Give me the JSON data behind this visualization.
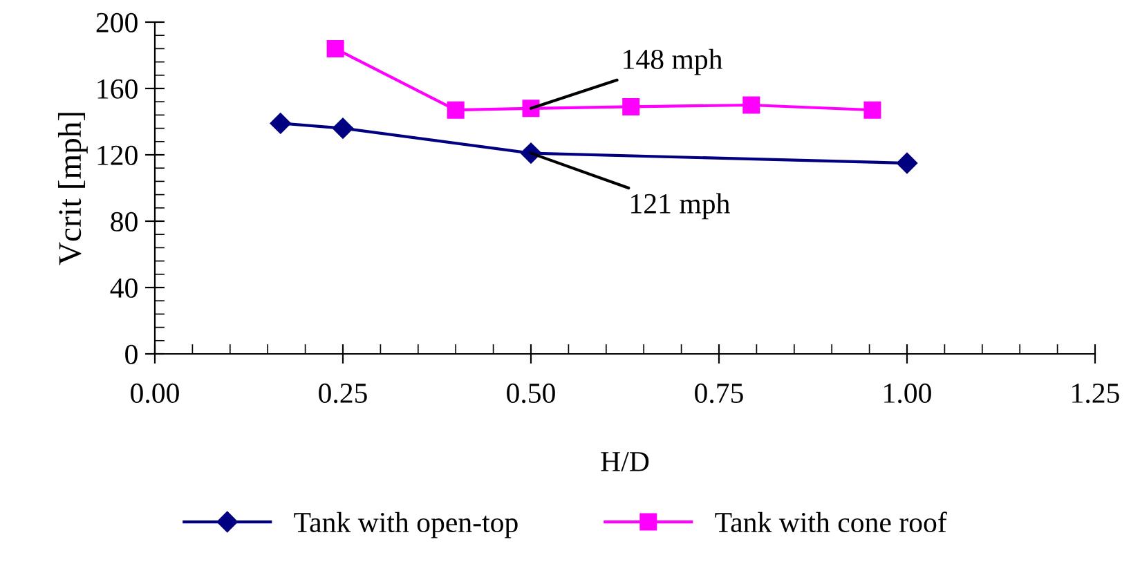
{
  "chart_data": {
    "type": "line",
    "xlabel": "H/D",
    "ylabel": "Vcrit [mph]",
    "xlim": [
      0,
      1.25
    ],
    "xticks": [
      {
        "value": 0,
        "label": "0.00"
      },
      {
        "value": 0.25,
        "label": "0.25"
      },
      {
        "value": 0.5,
        "label": "0.50"
      },
      {
        "value": 0.75,
        "label": "0.75"
      },
      {
        "value": 1,
        "label": "1.00"
      },
      {
        "value": 1.25,
        "label": "1.25"
      }
    ],
    "ylim": [
      0,
      200
    ],
    "yticks": [
      0,
      40,
      80,
      120,
      160,
      200
    ],
    "grid": false,
    "legend": "bottom",
    "series": [
      {
        "name": "Tank with open-top",
        "color": "#000080",
        "marker": "diamond",
        "x": [
          0.167,
          0.25,
          0.5,
          1.0
        ],
        "values": [
          139,
          136,
          121,
          115
        ]
      },
      {
        "name": "Tank with cone roof",
        "color": "#ff00ff",
        "marker": "square",
        "x": [
          0.24,
          0.4,
          0.5,
          0.633,
          0.793,
          0.954
        ],
        "values": [
          184,
          147,
          148,
          149,
          150,
          147
        ]
      }
    ],
    "annotations": [
      {
        "text": "148 mph",
        "x": 0.5,
        "y": 148
      },
      {
        "text": "121 mph",
        "x": 0.5,
        "y": 121
      }
    ]
  }
}
